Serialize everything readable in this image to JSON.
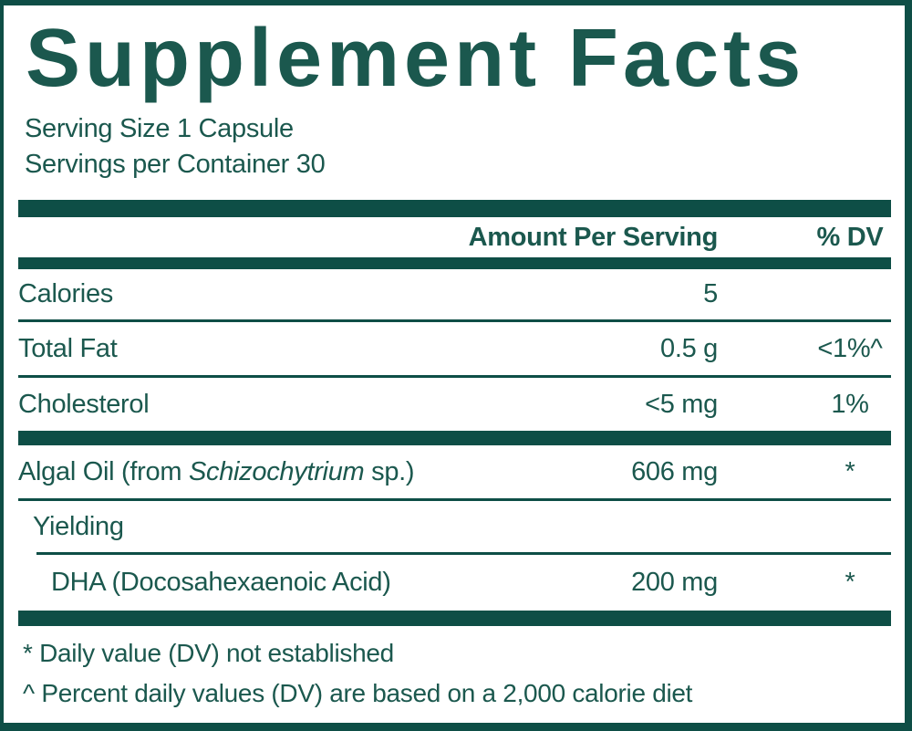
{
  "colors": {
    "teal_bar": "#0e4e46",
    "teal_text": "#1b584e"
  },
  "label": {
    "title": "Supplement Facts",
    "serving_size": "Serving Size 1 Capsule",
    "servings_per_container": "Servings per Container 30",
    "header": {
      "amount": "Amount Per Serving",
      "dv": "% DV"
    },
    "rows": [
      {
        "name": "Calories",
        "amount": "5",
        "dv": ""
      },
      {
        "name": "Total Fat",
        "amount": "0.5 g",
        "dv": "<1%^"
      },
      {
        "name": "Cholesterol",
        "amount": "<5 mg",
        "dv": "1%"
      },
      {
        "name_prefix": "Algal Oil (from ",
        "name_italic": "Schizochytrium",
        "name_suffix": " sp.)",
        "amount": "606 mg",
        "dv": "*"
      },
      {
        "name": "Yielding",
        "amount": "",
        "dv": ""
      },
      {
        "name": "DHA (Docosahexaenoic Acid)",
        "amount": "200 mg",
        "dv": "*"
      }
    ],
    "footnotes": [
      "* Daily value (DV) not established",
      "^ Percent daily values (DV) are based on a 2,000 calorie diet"
    ]
  }
}
